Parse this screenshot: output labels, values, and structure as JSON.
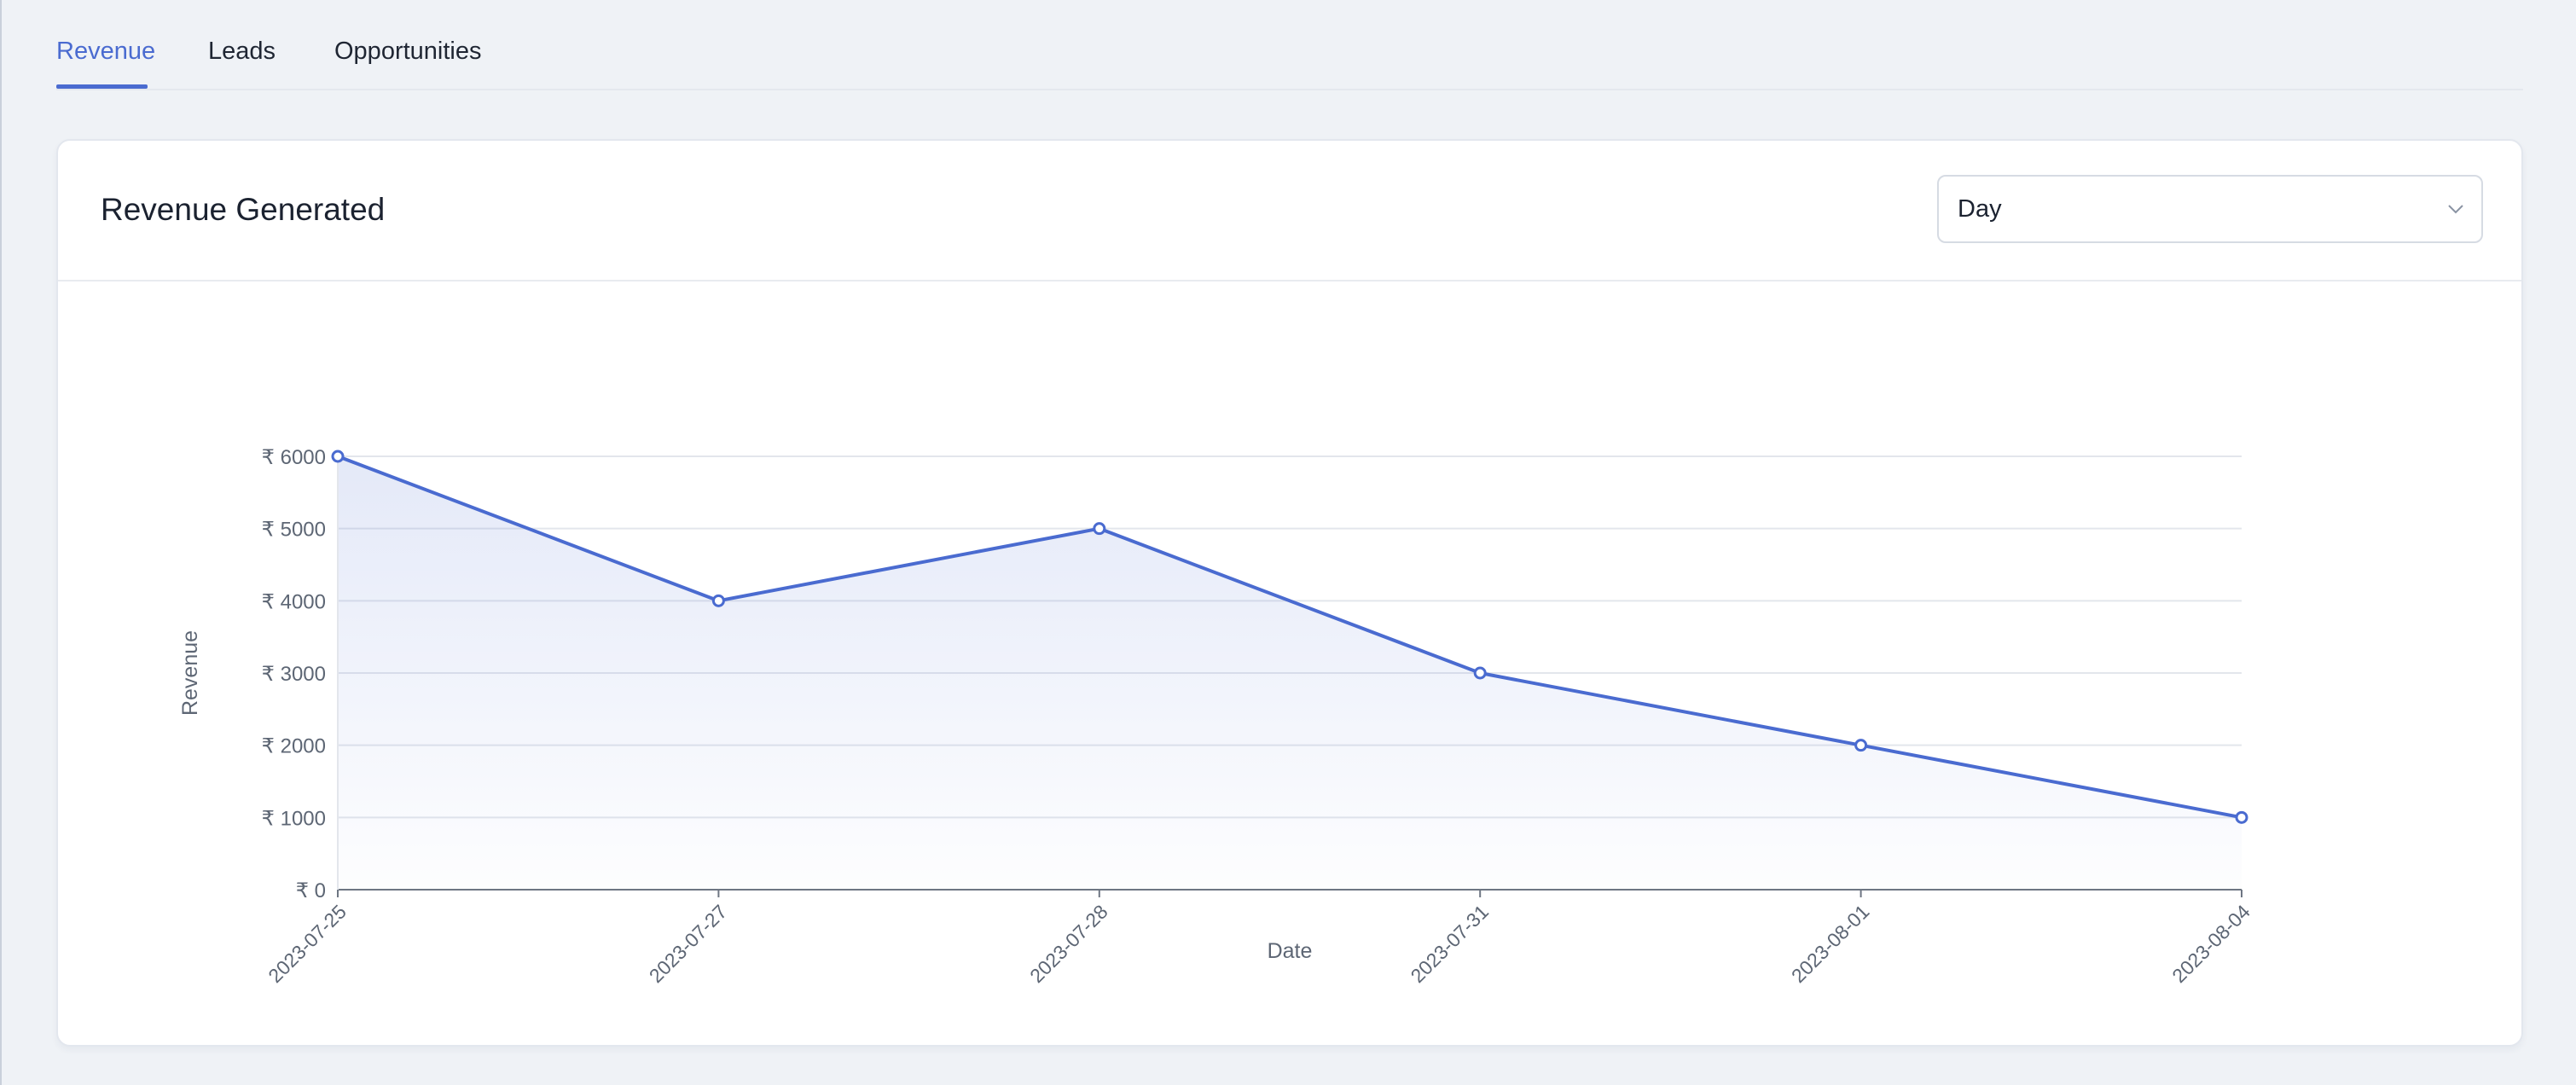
{
  "tabs": [
    {
      "label": "Revenue",
      "active": true
    },
    {
      "label": "Leads",
      "active": false
    },
    {
      "label": "Opportunities",
      "active": false
    }
  ],
  "card": {
    "title": "Revenue Generated",
    "period_select": {
      "value": "Day",
      "icon": "chevron-down-icon"
    }
  },
  "colors": {
    "accent": "#4a6bd0",
    "background": "#eff2f6",
    "card": "#ffffff"
  },
  "chart_data": {
    "type": "area",
    "x": [
      "2023-07-25",
      "2023-07-27",
      "2023-07-28",
      "2023-07-31",
      "2023-08-01",
      "2023-08-04"
    ],
    "series": [
      {
        "values": [
          6000,
          4000,
          5000,
          3000,
          2000,
          1000
        ]
      }
    ],
    "xlabel": "Date",
    "ylabel": "Revenue",
    "ylim": [
      0,
      6000
    ],
    "yticks": [
      "₹ 0",
      "₹ 1000",
      "₹ 2000",
      "₹ 3000",
      "₹ 4000",
      "₹ 5000",
      "₹ 6000"
    ],
    "grid": true,
    "legend": "none"
  }
}
